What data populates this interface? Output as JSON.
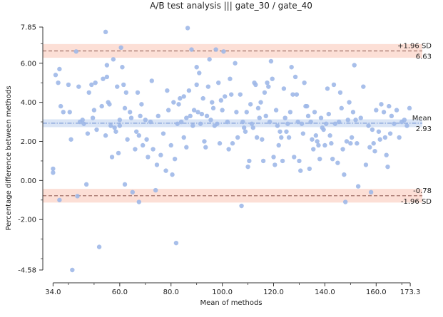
{
  "chart_data": {
    "type": "scatter",
    "title": "A/B test analysis ||| gate_30 / gate_40",
    "xlabel": "Mean of methods",
    "ylabel": "Percentage difference between methods",
    "xlim": [
      30.0,
      178.0
    ],
    "ylim": [
      -4.58,
      7.85
    ],
    "x_ticks": [
      34.0,
      60.0,
      80.0,
      100.0,
      120.0,
      140.0,
      160.0,
      173.3
    ],
    "x_tick_labels": [
      "34.0",
      "60.0",
      "80.0",
      "100.0",
      "120.0",
      "140.0",
      "160.0",
      "173.3"
    ],
    "y_ticks": [
      -4.58,
      -2.0,
      0.0,
      2.0,
      4.0,
      6.0,
      7.85
    ],
    "y_tick_labels": [
      "-4.58",
      "-2.00",
      "0.00",
      "2.00",
      "4.00",
      "6.00",
      "7.85"
    ],
    "mean": 2.93,
    "mean_label": "Mean",
    "mean_value_label": "2.93",
    "upper_loa": 6.63,
    "upper_label": "+1.96 SD",
    "upper_value_label": "6.63",
    "lower_loa": -0.78,
    "lower_label": "-1.96 SD",
    "lower_value_label": "-0.78",
    "mean_ci": [
      2.73,
      3.13
    ],
    "upper_ci": [
      6.28,
      6.98
    ],
    "lower_ci": [
      -1.13,
      -0.43
    ],
    "grid": false,
    "colors": {
      "points": "#9fb8e8",
      "mean_line": "#8aa6dc",
      "mean_band": "#d6e2f5",
      "loa_line": "#a07068",
      "loa_band": "#fbd9cf"
    },
    "points": [
      [
        34.0,
        0.4
      ],
      [
        34.0,
        0.6
      ],
      [
        35.0,
        5.4
      ],
      [
        36.0,
        5.0
      ],
      [
        36.5,
        5.7
      ],
      [
        37.0,
        3.8
      ],
      [
        36.5,
        -1.0
      ],
      [
        38.0,
        3.5
      ],
      [
        40.0,
        4.9
      ],
      [
        40.5,
        3.5
      ],
      [
        41.0,
        2.1
      ],
      [
        41.5,
        -4.58
      ],
      [
        43.0,
        6.6
      ],
      [
        43.5,
        -0.8
      ],
      [
        44.0,
        4.8
      ],
      [
        44.5,
        3.0
      ],
      [
        45.5,
        3.1
      ],
      [
        46.0,
        2.9
      ],
      [
        47.0,
        -0.2
      ],
      [
        47.5,
        2.4
      ],
      [
        48.0,
        4.5
      ],
      [
        49.0,
        4.9
      ],
      [
        49.5,
        3.2
      ],
      [
        50.0,
        3.6
      ],
      [
        50.5,
        5.0
      ],
      [
        51.0,
        2.6
      ],
      [
        52.0,
        -3.4
      ],
      [
        53.0,
        3.8
      ],
      [
        53.5,
        5.2
      ],
      [
        54.5,
        2.3
      ],
      [
        54.5,
        7.6
      ],
      [
        55.0,
        5.9
      ],
      [
        55.0,
        5.3
      ],
      [
        55.5,
        4.0
      ],
      [
        56.0,
        3.9
      ],
      [
        56.5,
        2.8
      ],
      [
        57.0,
        1.2
      ],
      [
        57.5,
        6.2
      ],
      [
        58.0,
        2.7
      ],
      [
        58.5,
        2.5
      ],
      [
        59.0,
        4.8
      ],
      [
        59.5,
        1.4
      ],
      [
        60.0,
        3.1
      ],
      [
        60.0,
        2.8
      ],
      [
        60.5,
        6.8
      ],
      [
        61.0,
        5.8
      ],
      [
        61.5,
        4.9
      ],
      [
        62.0,
        -0.2
      ],
      [
        62.0,
        3.7
      ],
      [
        62.5,
        4.5
      ],
      [
        63.0,
        2.1
      ],
      [
        64.0,
        3.5
      ],
      [
        64.5,
        3.2
      ],
      [
        65.0,
        -0.6
      ],
      [
        66.0,
        1.6
      ],
      [
        66.5,
        2.5
      ],
      [
        67.0,
        4.5
      ],
      [
        67.5,
        -1.1
      ],
      [
        67.5,
        2.3
      ],
      [
        68.0,
        3.3
      ],
      [
        68.5,
        3.9
      ],
      [
        69.0,
        1.8
      ],
      [
        70.0,
        3.1
      ],
      [
        70.5,
        2.1
      ],
      [
        71.0,
        1.2
      ],
      [
        72.0,
        3.0
      ],
      [
        72.5,
        5.1
      ],
      [
        73.0,
        1.6
      ],
      [
        74.0,
        -0.5
      ],
      [
        74.5,
        0.8
      ],
      [
        75.0,
        3.3
      ],
      [
        76.0,
        1.3
      ],
      [
        77.0,
        2.4
      ],
      [
        78.0,
        0.5
      ],
      [
        78.5,
        4.6
      ],
      [
        79.0,
        3.6
      ],
      [
        80.0,
        1.8
      ],
      [
        80.5,
        0.3
      ],
      [
        81.0,
        4.0
      ],
      [
        81.5,
        1.1
      ],
      [
        82.0,
        -3.2
      ],
      [
        82.5,
        2.9
      ],
      [
        83.0,
        3.9
      ],
      [
        83.5,
        4.2
      ],
      [
        84.0,
        3.0
      ],
      [
        85.0,
        2.2
      ],
      [
        85.0,
        4.3
      ],
      [
        86.0,
        1.7
      ],
      [
        86.0,
        3.2
      ],
      [
        86.5,
        7.8
      ],
      [
        87.0,
        4.6
      ],
      [
        87.5,
        3.3
      ],
      [
        88.0,
        6.7
      ],
      [
        88.5,
        2.8
      ],
      [
        89.0,
        3.6
      ],
      [
        90.0,
        5.8
      ],
      [
        90.0,
        4.9
      ],
      [
        90.5,
        3.5
      ],
      [
        91.0,
        5.5
      ],
      [
        91.5,
        2.9
      ],
      [
        92.0,
        3.4
      ],
      [
        92.5,
        4.2
      ],
      [
        93.0,
        2.0
      ],
      [
        93.5,
        1.7
      ],
      [
        94.0,
        3.3
      ],
      [
        94.5,
        4.8
      ],
      [
        95.0,
        6.2
      ],
      [
        95.5,
        3.1
      ],
      [
        96.0,
        4.0
      ],
      [
        96.5,
        3.7
      ],
      [
        97.0,
        2.8
      ],
      [
        97.5,
        6.7
      ],
      [
        98.0,
        2.9
      ],
      [
        98.5,
        5.0
      ],
      [
        99.0,
        1.9
      ],
      [
        99.5,
        4.1
      ],
      [
        100.0,
        3.6
      ],
      [
        100.5,
        6.6
      ],
      [
        101.0,
        4.3
      ],
      [
        102.0,
        3.0
      ],
      [
        102.5,
        1.6
      ],
      [
        103.0,
        5.2
      ],
      [
        103.5,
        4.4
      ],
      [
        104.0,
        1.9
      ],
      [
        105.0,
        6.0
      ],
      [
        105.5,
        3.5
      ],
      [
        106.0,
        2.2
      ],
      [
        107.0,
        4.4
      ],
      [
        107.5,
        -1.3
      ],
      [
        108.0,
        3.0
      ],
      [
        108.5,
        2.7
      ],
      [
        109.0,
        2.5
      ],
      [
        109.5,
        3.5
      ],
      [
        110.0,
        0.7
      ],
      [
        110.5,
        1.0
      ],
      [
        111.0,
        3.9
      ],
      [
        111.5,
        2.9
      ],
      [
        112.0,
        2.7
      ],
      [
        112.5,
        5.0
      ],
      [
        113.0,
        4.9
      ],
      [
        113.5,
        2.2
      ],
      [
        114.0,
        3.7
      ],
      [
        114.5,
        3.2
      ],
      [
        115.0,
        4.0
      ],
      [
        115.5,
        2.1
      ],
      [
        116.0,
        1.0
      ],
      [
        116.5,
        4.5
      ],
      [
        117.0,
        3.3
      ],
      [
        117.5,
        5.0
      ],
      [
        118.0,
        4.8
      ],
      [
        118.5,
        3.0
      ],
      [
        119.0,
        6.1
      ],
      [
        119.5,
        5.2
      ],
      [
        120.0,
        1.2
      ],
      [
        120.5,
        0.8
      ],
      [
        121.0,
        3.6
      ],
      [
        121.5,
        2.8
      ],
      [
        122.0,
        1.8
      ],
      [
        122.5,
        2.5
      ],
      [
        123.0,
        2.2
      ],
      [
        123.5,
        1.0
      ],
      [
        124.0,
        4.7
      ],
      [
        124.5,
        3.2
      ],
      [
        125.0,
        2.5
      ],
      [
        125.5,
        2.9
      ],
      [
        126.0,
        2.2
      ],
      [
        126.5,
        3.5
      ],
      [
        127.0,
        5.8
      ],
      [
        127.5,
        4.4
      ],
      [
        128.0,
        1.2
      ],
      [
        128.5,
        5.3
      ],
      [
        129.0,
        4.4
      ],
      [
        129.5,
        3.0
      ],
      [
        130.0,
        1.0
      ],
      [
        130.5,
        0.5
      ],
      [
        131.0,
        2.9
      ],
      [
        131.5,
        2.4
      ],
      [
        132.0,
        5.0
      ],
      [
        132.5,
        3.8
      ],
      [
        133.0,
        3.8
      ],
      [
        133.5,
        3.3
      ],
      [
        134.0,
        0.6
      ],
      [
        134.5,
        3.0
      ],
      [
        135.0,
        2.1
      ],
      [
        135.5,
        1.6
      ],
      [
        136.0,
        3.5
      ],
      [
        136.5,
        2.3
      ],
      [
        137.0,
        2.0
      ],
      [
        137.5,
        1.8
      ],
      [
        138.0,
        1.1
      ],
      [
        138.5,
        3.2
      ],
      [
        139.0,
        2.7
      ],
      [
        139.5,
        2.6
      ],
      [
        140.0,
        1.8
      ],
      [
        140.5,
        2.9
      ],
      [
        141.0,
        4.7
      ],
      [
        141.5,
        3.4
      ],
      [
        142.0,
        2.3
      ],
      [
        142.5,
        1.9
      ],
      [
        143.0,
        1.1
      ],
      [
        143.5,
        4.9
      ],
      [
        144.0,
        2.9
      ],
      [
        145.0,
        0.9
      ],
      [
        145.5,
        3.0
      ],
      [
        146.0,
        4.5
      ],
      [
        146.5,
        3.7
      ],
      [
        147.0,
        1.6
      ],
      [
        147.5,
        0.3
      ],
      [
        148.0,
        -1.1
      ],
      [
        148.5,
        2.0
      ],
      [
        149.0,
        3.1
      ],
      [
        149.5,
        4.0
      ],
      [
        150.0,
        1.9
      ],
      [
        150.5,
        2.2
      ],
      [
        151.0,
        3.5
      ],
      [
        151.5,
        5.9
      ],
      [
        152.0,
        3.1
      ],
      [
        152.5,
        1.9
      ],
      [
        153.0,
        -0.3
      ],
      [
        154.0,
        3.2
      ],
      [
        155.0,
        4.8
      ],
      [
        156.0,
        0.8
      ],
      [
        157.0,
        2.8
      ],
      [
        157.5,
        1.7
      ],
      [
        158.0,
        -0.6
      ],
      [
        158.5,
        2.6
      ],
      [
        159.0,
        1.9
      ],
      [
        159.5,
        1.5
      ],
      [
        160.0,
        3.6
      ],
      [
        161.0,
        2.5
      ],
      [
        161.5,
        2.1
      ],
      [
        162.0,
        3.9
      ],
      [
        163.0,
        3.5
      ],
      [
        163.5,
        2.2
      ],
      [
        164.0,
        1.3
      ],
      [
        164.5,
        0.7
      ],
      [
        165.0,
        3.8
      ],
      [
        165.5,
        2.4
      ],
      [
        166.0,
        3.3
      ],
      [
        167.0,
        2.9
      ],
      [
        168.0,
        3.6
      ],
      [
        169.0,
        2.2
      ],
      [
        170.0,
        3.0
      ],
      [
        171.0,
        3.1
      ],
      [
        172.0,
        2.8
      ],
      [
        173.0,
        3.7
      ]
    ]
  }
}
